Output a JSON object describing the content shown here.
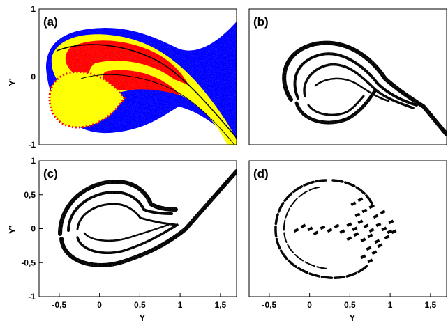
{
  "figure": {
    "panels": [
      "(a)",
      "(b)",
      "(c)",
      "(d)"
    ],
    "ylabel": "Y'",
    "xlabel": "Y"
  },
  "chart_data": [
    {
      "panel": "(a)",
      "type": "heatmap",
      "xlim": [
        -0.75,
        1.7
      ],
      "ylim": [
        -1,
        1
      ],
      "ylabel": "Y'",
      "yticks": [
        {
          "v": -1,
          "label": "-1"
        },
        {
          "v": 0,
          "label": "0"
        },
        {
          "v": 1,
          "label": "1"
        }
      ],
      "colors": {
        "basin_outer": "#0000ff",
        "basin_mid": "#ff0000",
        "basin_inner": "#ffff00",
        "divider": "#000000"
      }
    },
    {
      "panel": "(b)",
      "type": "scatter",
      "xlim": [
        -0.75,
        1.7
      ],
      "ylim": [
        -1,
        1
      ],
      "color": "#000000"
    },
    {
      "panel": "(c)",
      "type": "scatter",
      "xlim": [
        -0.75,
        1.7
      ],
      "ylim": [
        -1,
        1
      ],
      "ylabel": "Y'",
      "xlabel": "Y",
      "yticks": [
        {
          "v": -1,
          "label": "-1"
        },
        {
          "v": -0.5,
          "label": "-0,5"
        },
        {
          "v": 0,
          "label": "0"
        },
        {
          "v": 0.5,
          "label": "0,5"
        },
        {
          "v": 1,
          "label": "1"
        }
      ],
      "xticks": [
        {
          "v": -0.5,
          "label": "-0,5"
        },
        {
          "v": 0,
          "label": "0"
        },
        {
          "v": 0.5,
          "label": "0,5"
        },
        {
          "v": 1,
          "label": "1"
        },
        {
          "v": 1.5,
          "label": "1,5"
        }
      ],
      "color": "#000000"
    },
    {
      "panel": "(d)",
      "type": "scatter",
      "xlim": [
        -0.75,
        1.7
      ],
      "ylim": [
        -1,
        1
      ],
      "xlabel": "Y",
      "xticks": [
        {
          "v": -0.5,
          "label": "-0,5"
        },
        {
          "v": 0,
          "label": "0"
        },
        {
          "v": 0.5,
          "label": "0,5"
        },
        {
          "v": 1,
          "label": "1"
        },
        {
          "v": 1.5,
          "label": "1,5"
        }
      ],
      "color": "#000000"
    }
  ]
}
